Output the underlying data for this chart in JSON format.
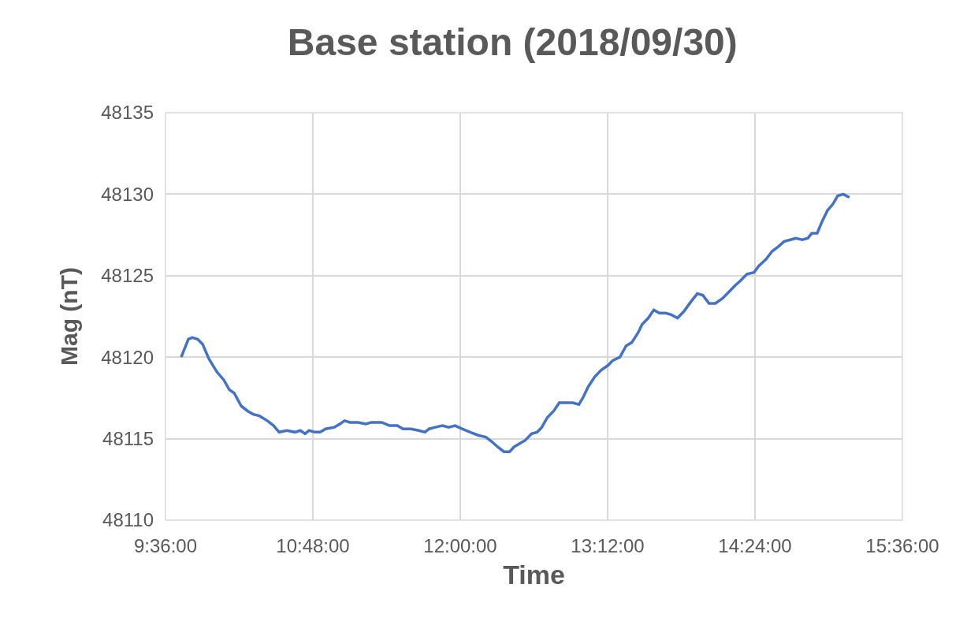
{
  "chart_data": {
    "type": "line",
    "title": "Base station (2018/09/30)",
    "xlabel": "Time",
    "ylabel": "Mag (nT)",
    "x": [
      9.728,
      9.786,
      9.818,
      9.863,
      9.902,
      9.953,
      10.018,
      10.075,
      10.12,
      10.159,
      10.217,
      10.268,
      10.313,
      10.364,
      10.429,
      10.48,
      10.525,
      10.589,
      10.654,
      10.698,
      10.737,
      10.769,
      10.814,
      10.859,
      10.904,
      10.975,
      11.02,
      11.058,
      11.103,
      11.167,
      11.232,
      11.276,
      11.36,
      11.424,
      11.488,
      11.534,
      11.598,
      11.662,
      11.713,
      11.746,
      11.797,
      11.855,
      11.906,
      11.958,
      12.015,
      12.08,
      12.15,
      12.208,
      12.26,
      12.304,
      12.356,
      12.401,
      12.439,
      12.484,
      12.529,
      12.581,
      12.626,
      12.664,
      12.709,
      12.761,
      12.806,
      12.851,
      12.915,
      12.966,
      12.998,
      13.043,
      13.095,
      13.146,
      13.204,
      13.242,
      13.3,
      13.351,
      13.396,
      13.448,
      13.48,
      13.531,
      13.576,
      13.621,
      13.673,
      13.718,
      13.769,
      13.82,
      13.878,
      13.93,
      13.975,
      14.026,
      14.077,
      14.135,
      14.187,
      14.238,
      14.283,
      14.334,
      14.392,
      14.431,
      14.489,
      14.54,
      14.592,
      14.637,
      14.688,
      14.733,
      14.785,
      14.83,
      14.862,
      14.906,
      14.945,
      14.99,
      15.035,
      15.073,
      15.118,
      15.169
    ],
    "series": [
      {
        "color": "#4472c4",
        "values": [
          48120.0,
          48121.1,
          48121.2,
          48121.1,
          48120.8,
          48119.9,
          48119.1,
          48118.6,
          48118.0,
          48117.8,
          48117.0,
          48116.7,
          48116.5,
          48116.4,
          48116.1,
          48115.8,
          48115.4,
          48115.5,
          48115.4,
          48115.5,
          48115.3,
          48115.5,
          48115.4,
          48115.4,
          48115.6,
          48115.7,
          48115.9,
          48116.1,
          48116.0,
          48116.0,
          48115.9,
          48116.0,
          48116.0,
          48115.8,
          48115.8,
          48115.6,
          48115.6,
          48115.5,
          48115.4,
          48115.6,
          48115.7,
          48115.8,
          48115.7,
          48115.8,
          48115.6,
          48115.4,
          48115.2,
          48115.1,
          48114.8,
          48114.5,
          48114.2,
          48114.2,
          48114.5,
          48114.7,
          48114.9,
          48115.3,
          48115.4,
          48115.7,
          48116.3,
          48116.7,
          48117.2,
          48117.2,
          48117.2,
          48117.1,
          48117.5,
          48118.2,
          48118.8,
          48119.2,
          48119.5,
          48119.8,
          48120.0,
          48120.7,
          48120.9,
          48121.5,
          48122.0,
          48122.4,
          48122.9,
          48122.7,
          48122.7,
          48122.6,
          48122.4,
          48122.8,
          48123.4,
          48123.9,
          48123.8,
          48123.3,
          48123.3,
          48123.6,
          48124.0,
          48124.4,
          48124.7,
          48125.1,
          48125.2,
          48125.6,
          48126.0,
          48126.5,
          48126.8,
          48127.1,
          48127.2,
          48127.3,
          48127.2,
          48127.3,
          48127.6,
          48127.6,
          48128.3,
          48129.0,
          48129.4,
          48129.9,
          48130.0,
          48129.8
        ]
      }
    ],
    "xlim": [
      9.6,
      15.6
    ],
    "xticks": [
      {
        "value": 9.6,
        "label": "9:36:00"
      },
      {
        "value": 10.8,
        "label": "10:48:00"
      },
      {
        "value": 12,
        "label": "12:00:00"
      },
      {
        "value": 13.2,
        "label": "13:12:00"
      },
      {
        "value": 14.4,
        "label": "14:24:00"
      },
      {
        "value": 15.6,
        "label": "15:36:00"
      }
    ],
    "ylim": [
      48110,
      48135
    ],
    "yticks": [
      48110,
      48115,
      48120,
      48125,
      48130,
      48135
    ],
    "grid": true,
    "marker": "none",
    "line_style": "solid"
  }
}
